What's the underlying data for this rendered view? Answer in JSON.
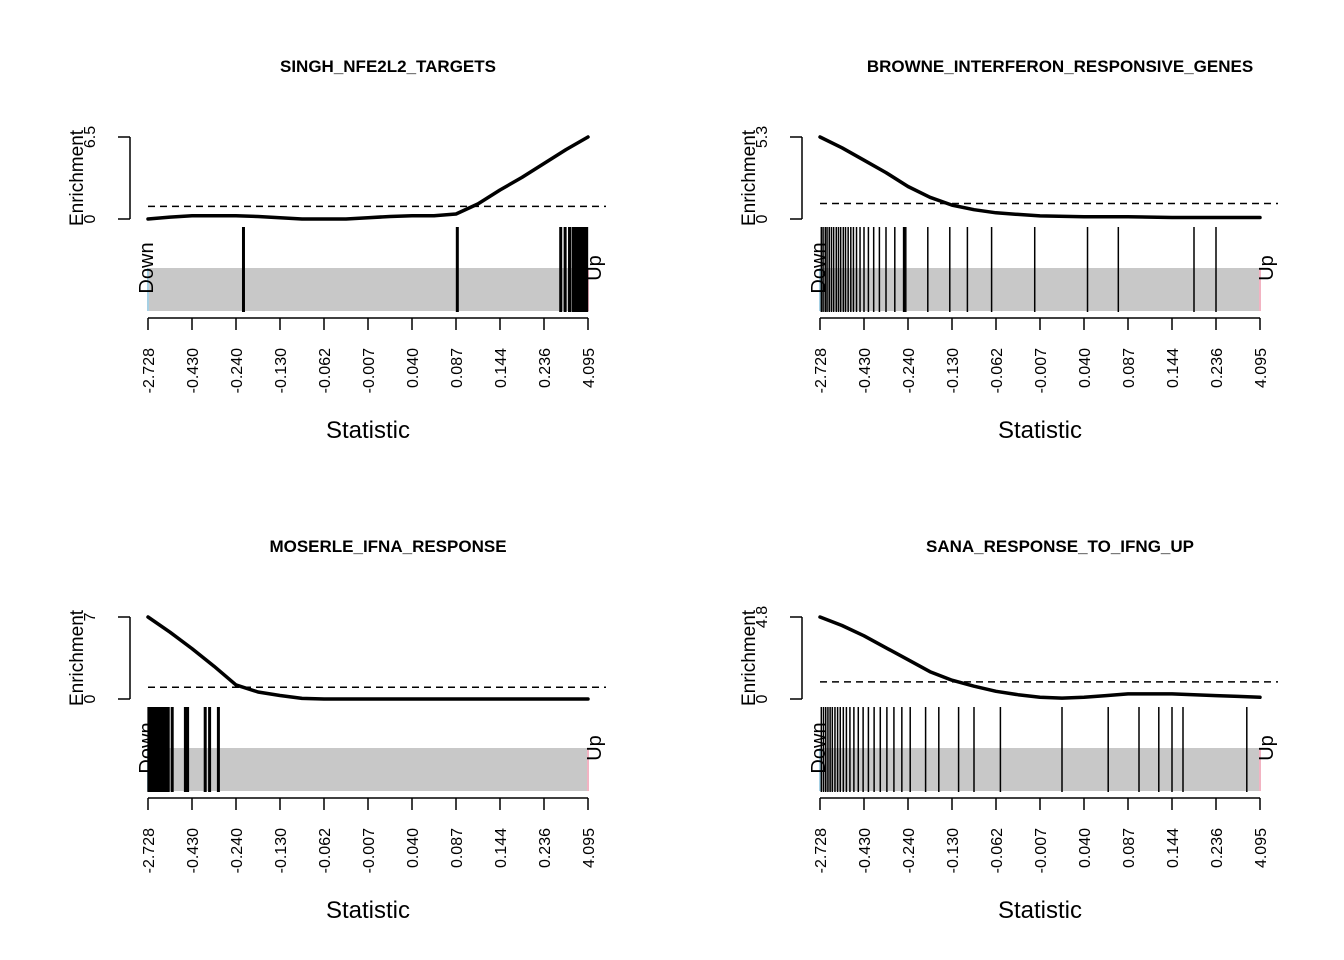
{
  "chart_data": [
    {
      "type": "barcode",
      "title": "SINGH_NFE2L2_TARGETS",
      "xlabel": "Statistic",
      "ylabel": "Enrichment",
      "xticks": [
        "-2.728",
        "-0.430",
        "-0.240",
        "-0.130",
        "-0.062",
        "-0.007",
        "0.040",
        "0.087",
        "0.144",
        "0.236",
        "4.095"
      ],
      "yticks": [
        "0",
        "6.5"
      ],
      "ylim": [
        0,
        6.5
      ],
      "expected_enrichment": 1.0,
      "down_label": "Down",
      "up_label": "Up",
      "worm_x": [
        0,
        0.05,
        0.1,
        0.15,
        0.2,
        0.25,
        0.3,
        0.35,
        0.4,
        0.45,
        0.5,
        0.55,
        0.6,
        0.65,
        0.7,
        0.75,
        0.8,
        0.85,
        0.9,
        0.95,
        1.0
      ],
      "worm_y": [
        0.0,
        0.15,
        0.25,
        0.25,
        0.25,
        0.2,
        0.1,
        0.0,
        0.0,
        0.0,
        0.1,
        0.2,
        0.25,
        0.25,
        0.4,
        1.2,
        2.3,
        3.3,
        4.4,
        5.5,
        6.5
      ],
      "barcode_positions": [
        0.217,
        0.703,
        0.938,
        0.948,
        0.958,
        0.966,
        0.972,
        0.978,
        0.983,
        0.988,
        0.993,
        0.997
      ]
    },
    {
      "type": "barcode",
      "title": "BROWNE_INTERFERON_RESPONSIVE_GENES",
      "xlabel": "Statistic",
      "ylabel": "Enrichment",
      "xticks": [
        "-2.728",
        "-0.430",
        "-0.240",
        "-0.130",
        "-0.062",
        "-0.007",
        "0.040",
        "0.087",
        "0.144",
        "0.236",
        "4.095"
      ],
      "yticks": [
        "0",
        "5.3"
      ],
      "ylim": [
        0,
        5.3
      ],
      "expected_enrichment": 1.0,
      "down_label": "Down",
      "up_label": "Up",
      "worm_x": [
        0,
        0.05,
        0.1,
        0.15,
        0.2,
        0.25,
        0.3,
        0.35,
        0.4,
        0.45,
        0.5,
        0.6,
        0.7,
        0.8,
        0.9,
        1.0
      ],
      "worm_y": [
        5.3,
        4.6,
        3.8,
        3.0,
        2.1,
        1.4,
        0.9,
        0.6,
        0.4,
        0.3,
        0.2,
        0.15,
        0.15,
        0.1,
        0.1,
        0.1
      ],
      "barcode_positions": [
        0.003,
        0.007,
        0.012,
        0.016,
        0.021,
        0.026,
        0.031,
        0.037,
        0.042,
        0.047,
        0.053,
        0.058,
        0.064,
        0.07,
        0.076,
        0.083,
        0.091,
        0.1,
        0.11,
        0.122,
        0.135,
        0.15,
        0.17,
        0.19,
        0.192,
        0.195,
        0.245,
        0.295,
        0.335,
        0.39,
        0.488,
        0.608,
        0.678,
        0.85,
        0.9
      ]
    },
    {
      "type": "barcode",
      "title": "MOSERLE_IFNA_RESPONSE",
      "xlabel": "Statistic",
      "ylabel": "Enrichment",
      "xticks": [
        "-2.728",
        "-0.430",
        "-0.240",
        "-0.130",
        "-0.062",
        "-0.007",
        "0.040",
        "0.087",
        "0.144",
        "0.236",
        "4.095"
      ],
      "yticks": [
        "0",
        "7"
      ],
      "ylim": [
        0,
        7
      ],
      "expected_enrichment": 1.0,
      "down_label": "Down",
      "up_label": "Up",
      "worm_x": [
        0,
        0.05,
        0.1,
        0.15,
        0.2,
        0.25,
        0.3,
        0.35,
        0.4,
        0.5,
        0.6,
        0.8,
        1.0
      ],
      "worm_y": [
        7.0,
        5.7,
        4.3,
        2.8,
        1.2,
        0.6,
        0.3,
        0.05,
        0.0,
        0.0,
        0.0,
        0.0,
        0.0
      ],
      "barcode_positions": [
        0.002,
        0.006,
        0.01,
        0.014,
        0.018,
        0.022,
        0.026,
        0.03,
        0.035,
        0.04,
        0.046,
        0.055,
        0.085,
        0.09,
        0.13,
        0.14,
        0.16
      ]
    },
    {
      "type": "barcode",
      "title": "SANA_RESPONSE_TO_IFNG_UP",
      "xlabel": "Statistic",
      "ylabel": "Enrichment",
      "xticks": [
        "-2.728",
        "-0.430",
        "-0.240",
        "-0.130",
        "-0.062",
        "-0.007",
        "0.040",
        "0.087",
        "0.144",
        "0.236",
        "4.095"
      ],
      "yticks": [
        "0",
        "4.8"
      ],
      "ylim": [
        0,
        4.8
      ],
      "expected_enrichment": 1.0,
      "down_label": "Down",
      "up_label": "Up",
      "worm_x": [
        0,
        0.05,
        0.1,
        0.15,
        0.2,
        0.25,
        0.3,
        0.35,
        0.4,
        0.45,
        0.5,
        0.55,
        0.6,
        0.65,
        0.7,
        0.75,
        0.8,
        0.85,
        0.9,
        0.95,
        1.0
      ],
      "worm_y": [
        4.8,
        4.3,
        3.7,
        3.0,
        2.3,
        1.6,
        1.1,
        0.75,
        0.45,
        0.25,
        0.1,
        0.05,
        0.1,
        0.2,
        0.3,
        0.3,
        0.3,
        0.25,
        0.2,
        0.15,
        0.1
      ],
      "barcode_positions": [
        0.003,
        0.008,
        0.013,
        0.018,
        0.023,
        0.028,
        0.034,
        0.04,
        0.046,
        0.053,
        0.06,
        0.068,
        0.077,
        0.087,
        0.098,
        0.11,
        0.123,
        0.137,
        0.152,
        0.168,
        0.186,
        0.205,
        0.24,
        0.27,
        0.315,
        0.35,
        0.41,
        0.55,
        0.655,
        0.725,
        0.77,
        0.8,
        0.825,
        0.97
      ]
    }
  ]
}
